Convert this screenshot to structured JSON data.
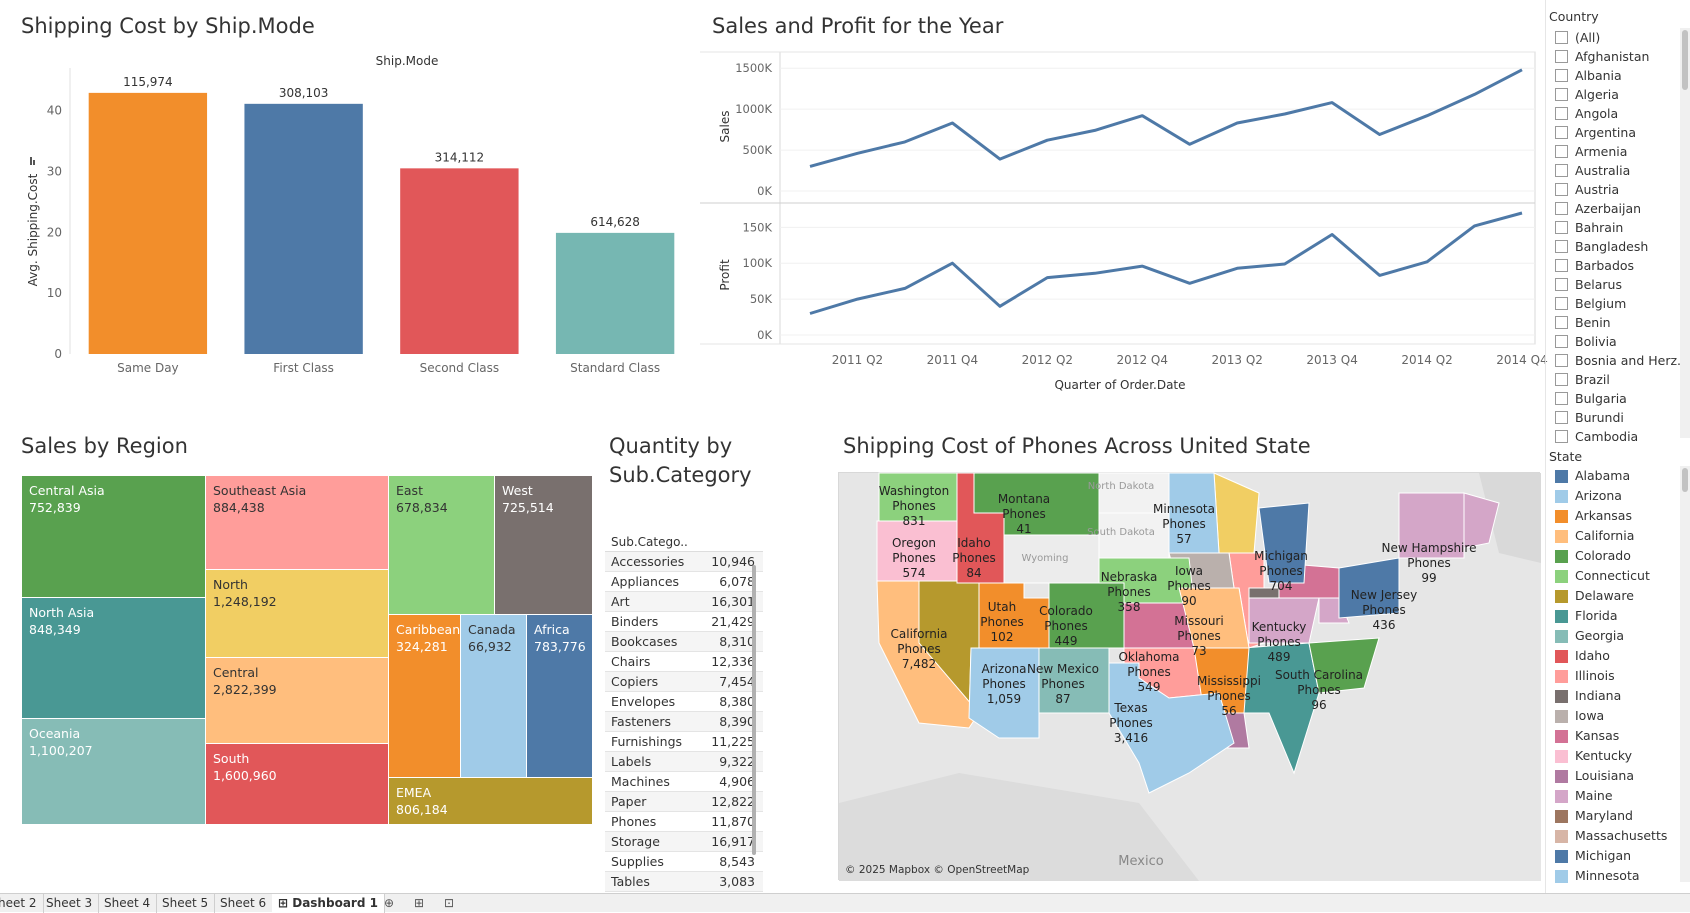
{
  "titles": {
    "shipping_cost": "Shipping Cost by Ship.Mode",
    "sales_profit": "Sales and Profit for the Year",
    "sales_region": "Sales by Region",
    "quantity_line1": "Quantity by",
    "quantity_line2": "Sub.Category",
    "phones_map": "Shipping Cost of Phones Across United State"
  },
  "chart_data": [
    {
      "type": "bar",
      "title": "Shipping Cost by Ship.Mode",
      "header": "Ship.Mode",
      "ylabel": "Avg. Shipping.Cost",
      "categories": [
        "Same Day",
        "First Class",
        "Second Class",
        "Standard Class"
      ],
      "values": [
        42.9,
        41.1,
        30.5,
        19.9
      ],
      "data_labels": [
        "115,974",
        "308,103",
        "314,112",
        "614,628"
      ],
      "colors": [
        "#f28e2b",
        "#4e79a7",
        "#e15759",
        "#76b7b2"
      ],
      "yticks": [
        0,
        10,
        20,
        30,
        40
      ],
      "ylim": [
        0,
        46
      ]
    },
    {
      "type": "line",
      "title": "Sales and Profit for the Year",
      "xlabel": "Quarter of Order.Date",
      "xticks": [
        "2011 Q2",
        "2011 Q4",
        "2012 Q2",
        "2012 Q4",
        "2013 Q2",
        "2013 Q4",
        "2014 Q2",
        "2014 Q4"
      ],
      "x": [
        "2011 Q1",
        "2011 Q2",
        "2011 Q3",
        "2011 Q4",
        "2012 Q1",
        "2012 Q2",
        "2012 Q3",
        "2012 Q4",
        "2013 Q1",
        "2013 Q2",
        "2013 Q3",
        "2013 Q4",
        "2014 Q1",
        "2014 Q2",
        "2014 Q3",
        "2014 Q4"
      ],
      "color": "#4e79a7",
      "series": [
        {
          "name": "Sales",
          "yticks": [
            "0K",
            "500K",
            "1000K",
            "1500K"
          ],
          "ylim": [
            0,
            1600000
          ],
          "values": [
            300000,
            460000,
            600000,
            830000,
            390000,
            620000,
            740000,
            920000,
            570000,
            830000,
            940000,
            1080000,
            690000,
            920000,
            1180000,
            1480000
          ]
        },
        {
          "name": "Profit",
          "yticks": [
            "0K",
            "50K",
            "100K",
            "150K"
          ],
          "ylim": [
            0,
            170000
          ],
          "values": [
            30000,
            50000,
            65000,
            100000,
            40000,
            80000,
            86000,
            96000,
            72000,
            93000,
            99000,
            140000,
            83000,
            102000,
            152000,
            170000
          ]
        }
      ]
    },
    {
      "type": "treemap",
      "title": "Sales by Region",
      "cells": [
        {
          "name": "Central Asia",
          "value": "752,839",
          "color": "#59a14f"
        },
        {
          "name": "Southeast Asia",
          "value": "884,438",
          "color": "#ff9d9a"
        },
        {
          "name": "East",
          "value": "678,834",
          "color": "#8cd17d"
        },
        {
          "name": "West",
          "value": "725,514",
          "color": "#79706e"
        },
        {
          "name": "North",
          "value": "1,248,192",
          "color": "#f1ce63"
        },
        {
          "name": "North Asia",
          "value": "848,349",
          "color": "#499894"
        },
        {
          "name": "Caribbean",
          "value": "324,281",
          "color": "#f28e2b"
        },
        {
          "name": "Canada",
          "value": "66,932",
          "color": "#a0cbe8"
        },
        {
          "name": "Africa",
          "value": "783,776",
          "color": "#4e79a7"
        },
        {
          "name": "Central",
          "value": "2,822,399",
          "color": "#ffbe7d"
        },
        {
          "name": "Oceania",
          "value": "1,100,207",
          "color": "#86bcb6"
        },
        {
          "name": "South",
          "value": "1,600,960",
          "color": "#e15759"
        },
        {
          "name": "EMEA",
          "value": "806,184",
          "color": "#b6992d"
        }
      ]
    },
    {
      "type": "table",
      "title": "Quantity by Sub.Category",
      "header": "Sub.Catego..",
      "rows": [
        {
          "name": "Accessories",
          "value": "10,946"
        },
        {
          "name": "Appliances",
          "value": "6,078"
        },
        {
          "name": "Art",
          "value": "16,301"
        },
        {
          "name": "Binders",
          "value": "21,429"
        },
        {
          "name": "Bookcases",
          "value": "8,310"
        },
        {
          "name": "Chairs",
          "value": "12,336"
        },
        {
          "name": "Copiers",
          "value": "7,454"
        },
        {
          "name": "Envelopes",
          "value": "8,380"
        },
        {
          "name": "Fasteners",
          "value": "8,390"
        },
        {
          "name": "Furnishings",
          "value": "11,225"
        },
        {
          "name": "Labels",
          "value": "9,322"
        },
        {
          "name": "Machines",
          "value": "4,906"
        },
        {
          "name": "Paper",
          "value": "12,822"
        },
        {
          "name": "Phones",
          "value": "11,870"
        },
        {
          "name": "Storage",
          "value": "16,917"
        },
        {
          "name": "Supplies",
          "value": "8,543"
        },
        {
          "name": "Tables",
          "value": "3,083"
        }
      ]
    }
  ],
  "map": {
    "credit": "© 2025 Mapbox © OpenStreetMap",
    "country_label": "Mexico",
    "states": [
      {
        "name": "Washington",
        "sub": "Phones",
        "value": "831",
        "color": "#8cd17d"
      },
      {
        "name": "Montana",
        "sub": "Phones",
        "value": "41",
        "color": "#59a14f"
      },
      {
        "name": "Minnesota",
        "sub": "Phones",
        "value": "57",
        "color": "#a0cbe8"
      },
      {
        "name": "Oregon",
        "sub": "Phones",
        "value": "574",
        "color": "#fabfd2"
      },
      {
        "name": "Idaho",
        "sub": "Phones",
        "value": "84",
        "color": "#e15759"
      },
      {
        "name": "Michigan",
        "sub": "Phones",
        "value": "704",
        "color": "#4e79a7"
      },
      {
        "name": "New Hampshire",
        "sub": "Phones",
        "value": "99",
        "color": "#d4a6c8"
      },
      {
        "name": "Iowa",
        "sub": "Phones",
        "value": "90",
        "color": "#bab0ac"
      },
      {
        "name": "Nebraska",
        "sub": "Phones",
        "value": "358",
        "color": "#8cd17d"
      },
      {
        "name": "New Jersey",
        "sub": "Phones",
        "value": "436",
        "color": "#4e79a7"
      },
      {
        "name": "Utah",
        "sub": "Phones",
        "value": "102",
        "color": "#f28e2b"
      },
      {
        "name": "Colorado",
        "sub": "Phones",
        "value": "449",
        "color": "#59a14f"
      },
      {
        "name": "Missouri",
        "sub": "Phones",
        "value": "73",
        "color": "#ffbe7d"
      },
      {
        "name": "Kentucky",
        "sub": "Phones",
        "value": "489",
        "color": "#d4a6c8"
      },
      {
        "name": "California",
        "sub": "Phones",
        "value": "7,482",
        "color": "#ffbe7d"
      },
      {
        "name": "Oklahoma",
        "sub": "Phones",
        "value": "549",
        "color": "#ff9d9a"
      },
      {
        "name": "Arizona",
        "sub": "Phones",
        "value": "1,059",
        "color": "#a0cbe8"
      },
      {
        "name": "New Mexico",
        "sub": "Phones",
        "value": "87",
        "color": "#86bcb6"
      },
      {
        "name": "Mississippi",
        "sub": "Phones",
        "value": "56",
        "color": "#f28e2b"
      },
      {
        "name": "South Carolina",
        "sub": "Phones",
        "value": "96",
        "color": "#59a14f"
      },
      {
        "name": "Texas",
        "sub": "Phones",
        "value": "3,416",
        "color": "#a0cbe8"
      }
    ],
    "faint_labels": [
      "North Dakota",
      "South Dakota",
      "Wyoming"
    ]
  },
  "country_filter": {
    "title": "Country",
    "items": [
      "(All)",
      "Afghanistan",
      "Albania",
      "Algeria",
      "Angola",
      "Argentina",
      "Armenia",
      "Australia",
      "Austria",
      "Azerbaijan",
      "Bahrain",
      "Bangladesh",
      "Barbados",
      "Belarus",
      "Belgium",
      "Benin",
      "Bolivia",
      "Bosnia and Herz...",
      "Brazil",
      "Bulgaria",
      "Burundi",
      "Cambodia"
    ]
  },
  "state_legend": {
    "title": "State",
    "items": [
      {
        "label": "Alabama",
        "color": "#4e79a7"
      },
      {
        "label": "Arizona",
        "color": "#a0cbe8"
      },
      {
        "label": "Arkansas",
        "color": "#f28e2b"
      },
      {
        "label": "California",
        "color": "#ffbe7d"
      },
      {
        "label": "Colorado",
        "color": "#59a14f"
      },
      {
        "label": "Connecticut",
        "color": "#8cd17d"
      },
      {
        "label": "Delaware",
        "color": "#b6992d"
      },
      {
        "label": "Florida",
        "color": "#499894"
      },
      {
        "label": "Georgia",
        "color": "#86bcb6"
      },
      {
        "label": "Idaho",
        "color": "#e15759"
      },
      {
        "label": "Illinois",
        "color": "#ff9d9a"
      },
      {
        "label": "Indiana",
        "color": "#79706e"
      },
      {
        "label": "Iowa",
        "color": "#bab0ac"
      },
      {
        "label": "Kansas",
        "color": "#d37295"
      },
      {
        "label": "Kentucky",
        "color": "#fabfd2"
      },
      {
        "label": "Louisiana",
        "color": "#b07aa1"
      },
      {
        "label": "Maine",
        "color": "#d4a6c8"
      },
      {
        "label": "Maryland",
        "color": "#9d7660"
      },
      {
        "label": "Massachusetts",
        "color": "#d7b5a6"
      },
      {
        "label": "Michigan",
        "color": "#4e79a7"
      },
      {
        "label": "Minnesota",
        "color": "#a0cbe8"
      }
    ]
  },
  "tabs": {
    "items": [
      "heet 2",
      "Sheet 3",
      "Sheet 4",
      "Sheet 5",
      "Sheet 6"
    ],
    "active": "Dashboard 1",
    "icons": [
      "new-sheet-icon",
      "new-dashboard-icon",
      "new-story-icon"
    ]
  }
}
